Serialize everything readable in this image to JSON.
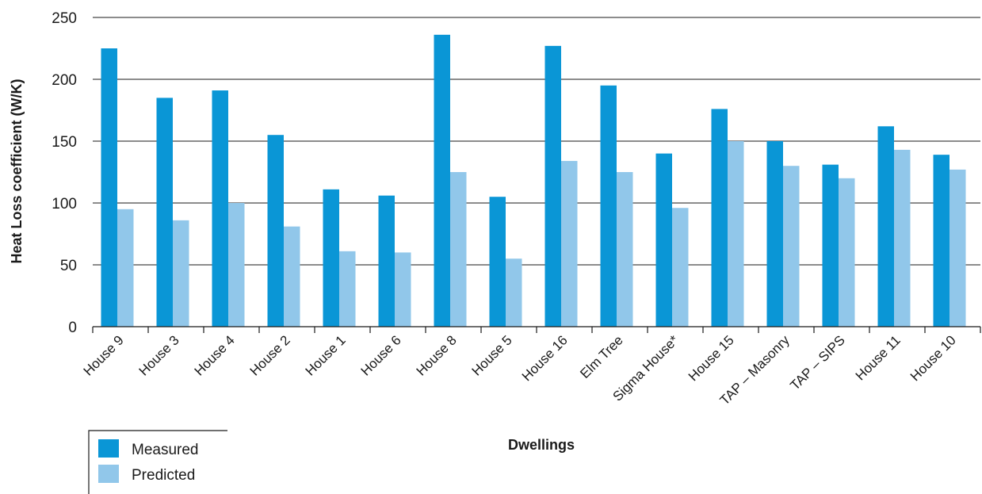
{
  "chart_data": {
    "type": "bar",
    "xlabel": "Dwellings",
    "ylabel": "Heat Loss coefficient (W/K)",
    "ylim": [
      0,
      250
    ],
    "yticks": [
      0,
      50,
      100,
      150,
      200,
      250
    ],
    "grid": true,
    "legend_position": "bottom-left",
    "categories": [
      "House 9",
      "House 3",
      "House 4",
      "House 2",
      "House 1",
      "House 6",
      "House 8",
      "House 5",
      "House 16",
      "Elm Tree",
      "Sigma House*",
      "House 15",
      "TAP – Masonry",
      "TAP – SIPS",
      "House 11",
      "House 10"
    ],
    "series": [
      {
        "name": "Measured",
        "color": "#0a96d6",
        "values": [
          225,
          185,
          191,
          155,
          111,
          106,
          236,
          105,
          227,
          195,
          140,
          176,
          150,
          131,
          162,
          139
        ]
      },
      {
        "name": "Predicted",
        "color": "#91c7ea",
        "values": [
          95,
          86,
          100,
          81,
          61,
          60,
          125,
          55,
          134,
          125,
          96,
          150,
          130,
          120,
          143,
          127
        ]
      }
    ]
  }
}
